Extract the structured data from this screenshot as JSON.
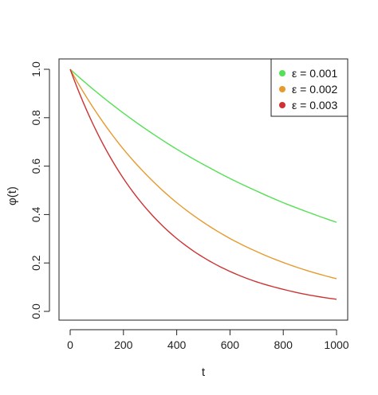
{
  "chart_data": {
    "type": "line",
    "title": "",
    "xlabel": "t",
    "ylabel": "φ(t)",
    "xlim": [
      0,
      1000
    ],
    "ylim": [
      0,
      1.0
    ],
    "xticks": [
      "0",
      "200",
      "400",
      "600",
      "800",
      "1000"
    ],
    "yticks": [
      "0.0",
      "0.2",
      "0.4",
      "0.6",
      "0.8",
      "1.0"
    ],
    "grid": false,
    "legend_position": "top-right",
    "series": [
      {
        "name": "ε = 0.001",
        "color": "#55e055",
        "x": [
          0,
          100,
          200,
          300,
          400,
          500,
          600,
          700,
          800,
          900,
          1000
        ],
        "values": [
          1.0,
          0.905,
          0.819,
          0.741,
          0.67,
          0.607,
          0.549,
          0.497,
          0.449,
          0.407,
          0.368
        ]
      },
      {
        "name": "ε = 0.002",
        "color": "#e69a2e",
        "x": [
          0,
          100,
          200,
          300,
          400,
          500,
          600,
          700,
          800,
          900,
          1000
        ],
        "values": [
          1.0,
          0.819,
          0.67,
          0.549,
          0.449,
          0.368,
          0.301,
          0.247,
          0.202,
          0.165,
          0.135
        ]
      },
      {
        "name": "ε = 0.003",
        "color": "#cc3333",
        "x": [
          0,
          100,
          200,
          300,
          400,
          500,
          600,
          700,
          800,
          900,
          1000
        ],
        "values": [
          1.0,
          0.741,
          0.549,
          0.407,
          0.301,
          0.223,
          0.165,
          0.122,
          0.091,
          0.067,
          0.05
        ]
      }
    ]
  }
}
